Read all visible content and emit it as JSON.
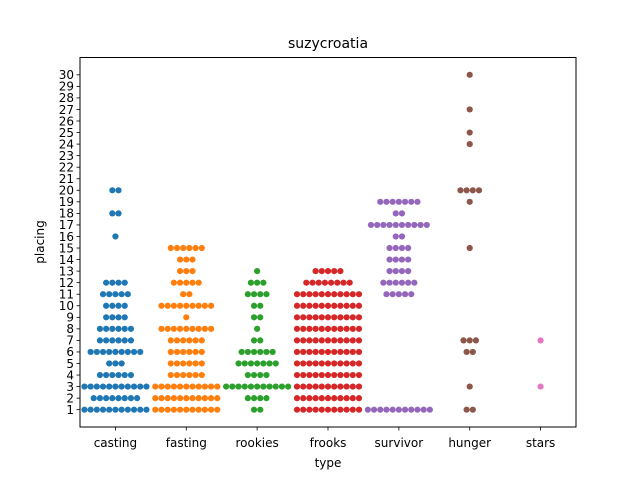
{
  "chart_data": {
    "type": "scatter",
    "subtype": "swarm",
    "title": "suzycroatia",
    "xlabel": "type",
    "ylabel": "placing",
    "categories": [
      "casting",
      "fasting",
      "rookies",
      "frooks",
      "survivor",
      "hunger",
      "stars"
    ],
    "y_ticks": [
      "1",
      "2",
      "3",
      "4",
      "5",
      "6",
      "7",
      "8",
      "9",
      "10",
      "11",
      "12",
      "13",
      "14",
      "15",
      "16",
      "17",
      "18",
      "19",
      "20",
      "21",
      "22",
      "23",
      "24",
      "25",
      "26",
      "27",
      "28",
      "29",
      "30"
    ],
    "ylim": [
      -0.5,
      31.5
    ],
    "grid": false,
    "legend": "none",
    "colors": [
      "#1f77b4",
      "#ff7f0e",
      "#2ca02c",
      "#d62728",
      "#9467bd",
      "#8c564b",
      "#e377c2"
    ],
    "series": [
      {
        "category": "casting",
        "counts": {
          "1": 11,
          "2": 8,
          "3": 11,
          "4": 6,
          "5": 3,
          "6": 9,
          "7": 6,
          "8": 6,
          "9": 4,
          "10": 4,
          "11": 5,
          "12": 4,
          "16": 1,
          "18": 2,
          "20": 2
        }
      },
      {
        "category": "fasting",
        "counts": {
          "1": 11,
          "2": 11,
          "3": 11,
          "4": 6,
          "5": 6,
          "6": 6,
          "7": 6,
          "8": 9,
          "9": 1,
          "10": 9,
          "11": 2,
          "12": 5,
          "13": 3,
          "14": 3,
          "15": 6
        }
      },
      {
        "category": "rookies",
        "counts": {
          "1": 2,
          "2": 4,
          "3": 11,
          "4": 4,
          "5": 7,
          "6": 6,
          "7": 2,
          "8": 1,
          "9": 2,
          "10": 2,
          "11": 4,
          "12": 3,
          "13": 1
        }
      },
      {
        "category": "frooks",
        "counts": {
          "1": 11,
          "2": 11,
          "3": 11,
          "4": 11,
          "5": 11,
          "6": 11,
          "7": 11,
          "8": 11,
          "9": 11,
          "10": 11,
          "11": 11,
          "12": 8,
          "13": 5
        }
      },
      {
        "category": "survivor",
        "counts": {
          "1": 11,
          "11": 5,
          "12": 6,
          "13": 4,
          "14": 4,
          "15": 4,
          "16": 2,
          "17": 10,
          "18": 2,
          "19": 7
        }
      },
      {
        "category": "hunger",
        "counts": {
          "1": 2,
          "3": 1,
          "6": 2,
          "7": 3,
          "15": 1,
          "19": 1,
          "20": 4,
          "24": 1,
          "25": 1,
          "27": 1,
          "30": 1
        }
      },
      {
        "category": "stars",
        "counts": {
          "3": 1,
          "7": 1
        }
      }
    ]
  }
}
